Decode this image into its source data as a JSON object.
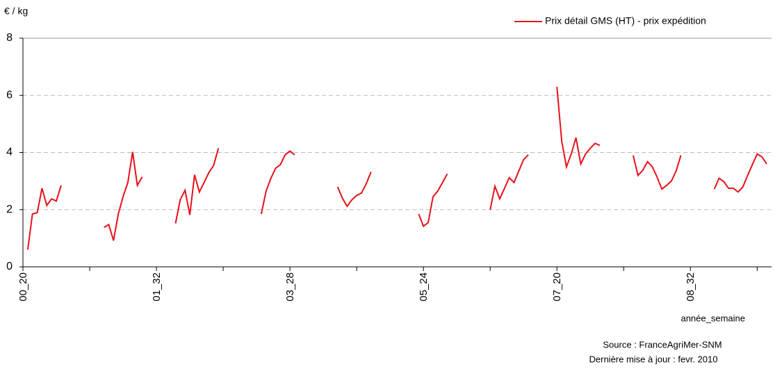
{
  "chart_data": {
    "type": "line",
    "y_label": "€ / kg",
    "x_label": "année_semaine",
    "annotations": [
      "Source : FranceAgriMer-SNM",
      "Dernière mise à jour : fevr. 2010"
    ],
    "legend": "top-right",
    "grid": true,
    "ylim": [
      0,
      8
    ],
    "yticks": [
      0,
      2,
      4,
      6,
      8
    ],
    "categories": [
      "00_20",
      null,
      null,
      null,
      null,
      null,
      null,
      null,
      null,
      null,
      null,
      null,
      null,
      null,
      null,
      null,
      null,
      null,
      null,
      null,
      null,
      null,
      null,
      null,
      null,
      null,
      null,
      null,
      "01_32",
      null,
      null,
      null,
      null,
      null,
      null,
      null,
      null,
      null,
      null,
      null,
      null,
      null,
      null,
      null,
      null,
      null,
      null,
      null,
      null,
      null,
      null,
      null,
      null,
      null,
      null,
      null,
      "03_28",
      null,
      null,
      null,
      null,
      null,
      null,
      null,
      null,
      null,
      null,
      null,
      null,
      null,
      null,
      null,
      null,
      null,
      null,
      null,
      null,
      null,
      null,
      null,
      null,
      null,
      null,
      null,
      "05_24",
      null,
      null,
      null,
      null,
      null,
      null,
      null,
      null,
      null,
      null,
      null,
      null,
      null,
      null,
      null,
      null,
      null,
      null,
      null,
      null,
      null,
      null,
      null,
      null,
      null,
      null,
      null,
      "07_20",
      null,
      null,
      null,
      null,
      null,
      null,
      null,
      null,
      null,
      null,
      null,
      null,
      null,
      null,
      null,
      null,
      null,
      null,
      null,
      null,
      null,
      null,
      null,
      null,
      null,
      null,
      null,
      "08_32",
      null,
      null,
      null,
      null,
      null,
      null,
      null,
      null,
      null,
      null,
      null,
      null,
      null,
      null,
      null,
      null
    ],
    "series": [
      {
        "name": "Prix détail GMS (HT) - prix expédition",
        "color": "#e8101a",
        "values": [
          null,
          0.6,
          1.85,
          1.9,
          2.75,
          2.15,
          2.38,
          2.3,
          2.85,
          null,
          null,
          null,
          null,
          null,
          null,
          null,
          null,
          1.38,
          1.48,
          0.92,
          1.85,
          2.45,
          2.95,
          4.02,
          2.85,
          3.15,
          null,
          null,
          null,
          null,
          null,
          null,
          1.52,
          2.35,
          2.68,
          1.82,
          3.22,
          2.62,
          2.95,
          3.3,
          3.55,
          4.15,
          null,
          null,
          null,
          null,
          null,
          null,
          null,
          null,
          1.85,
          2.65,
          3.1,
          3.45,
          3.58,
          3.92,
          4.05,
          3.92,
          null,
          null,
          null,
          null,
          null,
          null,
          null,
          null,
          2.8,
          2.4,
          2.12,
          2.35,
          2.5,
          2.58,
          2.9,
          3.32,
          null,
          null,
          null,
          null,
          null,
          null,
          null,
          null,
          null,
          1.85,
          1.42,
          1.55,
          2.45,
          2.65,
          2.95,
          3.25,
          null,
          null,
          null,
          null,
          null,
          null,
          null,
          null,
          2.0,
          2.82,
          2.38,
          2.75,
          3.12,
          2.95,
          3.35,
          3.75,
          3.92,
          null,
          null,
          null,
          null,
          null,
          6.3,
          4.4,
          3.5,
          3.95,
          4.52,
          3.6,
          3.95,
          4.15,
          4.32,
          4.25,
          null,
          null,
          null,
          null,
          null,
          null,
          3.9,
          3.2,
          3.38,
          3.68,
          3.5,
          3.15,
          2.72,
          2.85,
          3.0,
          3.35,
          3.9,
          null,
          null,
          null,
          null,
          null,
          null,
          2.72,
          3.1,
          2.98,
          2.75,
          2.75,
          2.62,
          2.8,
          3.2,
          3.58,
          3.95,
          3.85,
          3.6
        ]
      }
    ]
  }
}
